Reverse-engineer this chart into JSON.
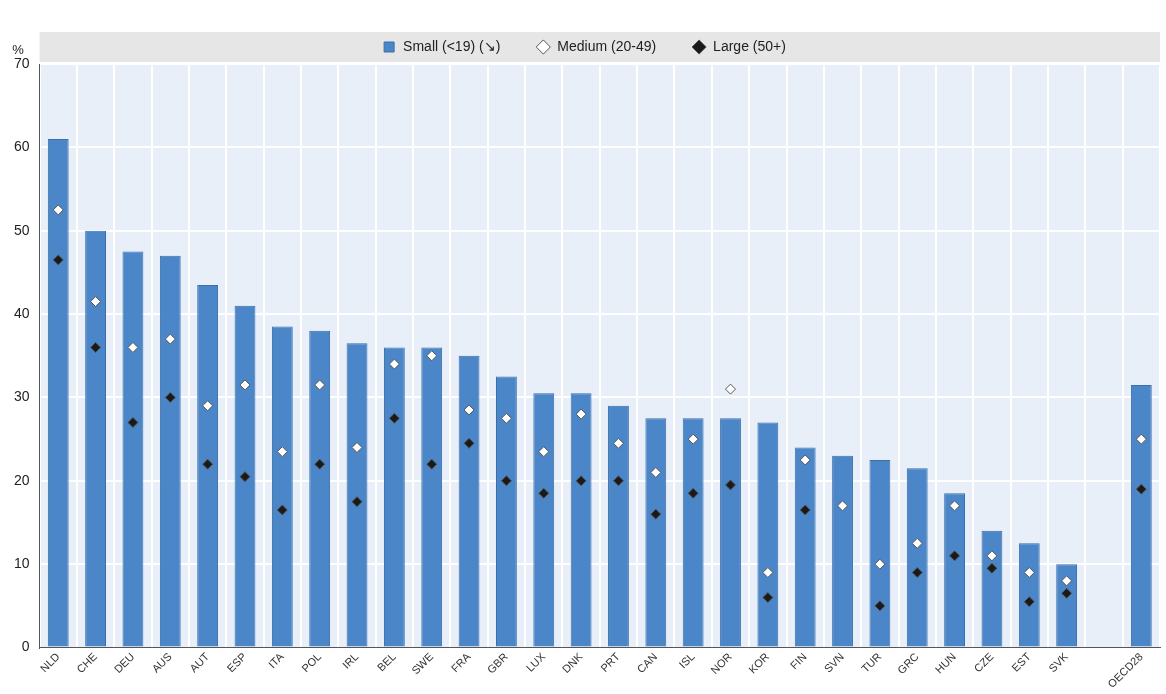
{
  "chart_data": {
    "type": "bar",
    "ylabel": "%",
    "categories": [
      "NLD",
      "CHE",
      "DEU",
      "AUS",
      "AUT",
      "ESP",
      "ITA",
      "POL",
      "IRL",
      "BEL",
      "SWE",
      "FRA",
      "GBR",
      "LUX",
      "DNK",
      "PRT",
      "CAN",
      "ISL",
      "NOR",
      "KOR",
      "FIN",
      "SVN",
      "TUR",
      "GRC",
      "HUN",
      "CZE",
      "EST",
      "SVK",
      null,
      "OECD28"
    ],
    "series": [
      {
        "name": "Small (<19) (↘)",
        "color": "#4a86c8",
        "values": [
          61,
          50,
          47.5,
          47,
          43.5,
          41,
          38.5,
          38,
          36.5,
          36,
          36,
          35,
          32.5,
          30.5,
          30.5,
          29,
          27.5,
          27.5,
          27.5,
          27,
          24,
          23,
          22.5,
          21.5,
          18.5,
          14,
          12.5,
          10,
          null,
          31.5
        ]
      },
      {
        "name": "Medium (20-49)",
        "type": "scatter",
        "color": "#ffffff",
        "values": [
          52.5,
          41.5,
          36,
          37,
          29,
          31.5,
          23.5,
          31.5,
          24,
          34,
          35,
          28.5,
          27.5,
          23.5,
          28,
          24.5,
          21,
          25,
          31,
          9,
          22.5,
          17,
          10,
          12.5,
          17,
          11,
          9,
          8,
          null,
          25
        ]
      },
      {
        "name": "Large (50+)",
        "type": "scatter",
        "color": "#1a1a1a",
        "values": [
          46.5,
          36,
          27,
          30,
          22,
          20.5,
          16.5,
          22,
          17.5,
          27.5,
          22,
          24.5,
          20,
          18.5,
          20,
          20,
          16,
          18.5,
          19.5,
          6,
          16.5,
          null,
          5,
          9,
          11,
          9.5,
          5.5,
          6.5,
          null,
          19
        ]
      }
    ],
    "ylim": [
      0,
      70
    ],
    "yticks": [
      0,
      10,
      20,
      30,
      40,
      50,
      60,
      70
    ],
    "grid": true,
    "legend": "top",
    "marker": "diamond"
  }
}
